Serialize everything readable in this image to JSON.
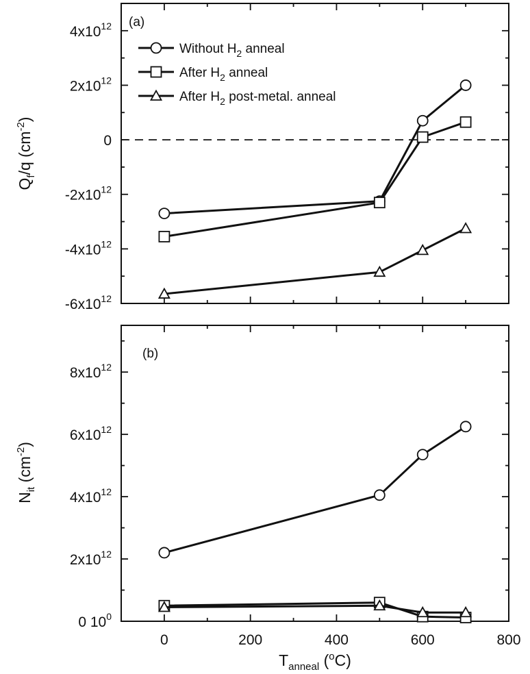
{
  "chart_data": [
    {
      "type": "line",
      "panel_label": "(a)",
      "ylabel": {
        "main": "Q",
        "sub": "f",
        "rest": "/q (cm",
        "sup": "-2",
        "close": ")"
      },
      "ylim": [
        -6000000000000.0,
        5000000000000.0
      ],
      "xlim": [
        -100,
        800
      ],
      "x_ticks_shown": false,
      "y_ticks": [
        {
          "value": -6000000000000.0,
          "text": "-6x10",
          "exp": "12"
        },
        {
          "value": -4000000000000.0,
          "text": "-4x10",
          "exp": "12"
        },
        {
          "value": -2000000000000.0,
          "text": "-2x10",
          "exp": "12"
        },
        {
          "value": 0,
          "text": "0",
          "exp": ""
        },
        {
          "value": 2000000000000.0,
          "text": "2x10",
          "exp": "12"
        },
        {
          "value": 4000000000000.0,
          "text": "4x10",
          "exp": "12"
        }
      ],
      "reference_line": {
        "y": 0,
        "style": "dashed"
      },
      "legend": {
        "placement": "top-left"
      },
      "series": [
        {
          "name": {
            "pre": "Without H",
            "sub": "2",
            "post": " anneal"
          },
          "marker": "circle",
          "x": [
            0,
            500,
            600,
            700
          ],
          "y": [
            -2700000000000.0,
            -2250000000000.0,
            700000000000.0,
            2000000000000.0
          ]
        },
        {
          "name": {
            "pre": "After H",
            "sub": "2",
            "post": " anneal"
          },
          "marker": "square",
          "x": [
            0,
            500,
            600,
            700
          ],
          "y": [
            -3550000000000.0,
            -2300000000000.0,
            100000000000.0,
            650000000000.0
          ]
        },
        {
          "name": {
            "pre": "After H",
            "sub": "2",
            "post": " post-metal. anneal"
          },
          "marker": "triangle",
          "x": [
            0,
            500,
            600,
            700
          ],
          "y": [
            -5650000000000.0,
            -4850000000000.0,
            -4050000000000.0,
            -3250000000000.0
          ]
        }
      ]
    },
    {
      "type": "line",
      "panel_label": "(b)",
      "ylabel": {
        "main": "N",
        "sub": "it",
        "rest": " (cm",
        "sup": "-2",
        "close": ")"
      },
      "xlabel": {
        "main": "T",
        "sub": "anneal",
        "rest": " (",
        "sup": "o",
        "close": "C)"
      },
      "ylim": [
        0,
        9500000000000.0
      ],
      "xlim": [
        -100,
        800
      ],
      "x_ticks": [
        0,
        200,
        400,
        600,
        800
      ],
      "y_ticks": [
        {
          "value": 0,
          "text": "0 10",
          "exp": "0"
        },
        {
          "value": 2000000000000.0,
          "text": "2x10",
          "exp": "12"
        },
        {
          "value": 4000000000000.0,
          "text": "4x10",
          "exp": "12"
        },
        {
          "value": 6000000000000.0,
          "text": "6x10",
          "exp": "12"
        },
        {
          "value": 8000000000000.0,
          "text": "8x10",
          "exp": "12"
        }
      ],
      "series": [
        {
          "marker": "circle",
          "x": [
            0,
            500,
            600,
            700
          ],
          "y": [
            2200000000000.0,
            4050000000000.0,
            5350000000000.0,
            6250000000000.0
          ]
        },
        {
          "marker": "square",
          "x": [
            0,
            500,
            600,
            700
          ],
          "y": [
            500000000000.0,
            600000000000.0,
            150000000000.0,
            120000000000.0
          ]
        },
        {
          "marker": "triangle",
          "x": [
            0,
            500,
            600,
            700
          ],
          "y": [
            450000000000.0,
            500000000000.0,
            280000000000.0,
            280000000000.0
          ]
        }
      ]
    }
  ]
}
